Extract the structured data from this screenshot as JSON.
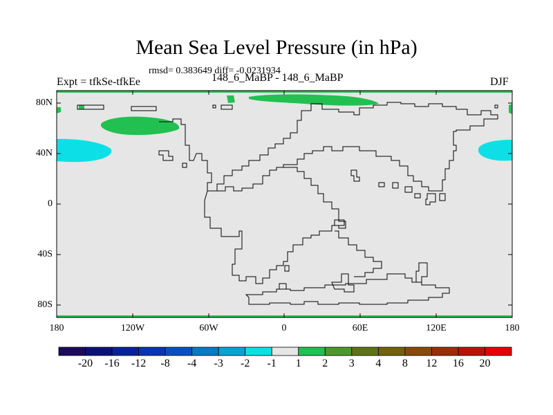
{
  "title": "Mean Sea Level Pressure (in hPa)",
  "subtitle": "rmsd= 0.383649 diff= -0.0231934",
  "left_label": "Expt = tfkSe-tfkEe",
  "center_label": "148_6_MaBP - 148_6_MaBP",
  "right_label": "DJF",
  "y_axis_labels": [
    "80N",
    "40N",
    "0",
    "40S",
    "80S"
  ],
  "x_axis_labels": [
    "180",
    "120W",
    "60W",
    "0",
    "60E",
    "120E",
    "180"
  ],
  "colorbar": {
    "colors": [
      "#1c0a5e",
      "#0a127a",
      "#08229b",
      "#0437b0",
      "#0552bd",
      "#0a78c8",
      "#0aa2d4",
      "#0ce0e6",
      "#e6e6e6",
      "#22c050",
      "#4a9a28",
      "#5e7414",
      "#74620a",
      "#8a4a06",
      "#9c2e04",
      "#b81402",
      "#e60000"
    ],
    "labels": [
      "-20",
      "-16",
      "-12",
      "-8",
      "-4",
      "-3",
      "-2",
      "-1",
      "1",
      "2",
      "3",
      "4",
      "8",
      "12",
      "16",
      "20"
    ]
  },
  "colors": {
    "background_field": "#e6e6e6",
    "positive_anomaly": "#22c050",
    "negative_anomaly": "#0ce0e6",
    "coastline": "#000000"
  }
}
